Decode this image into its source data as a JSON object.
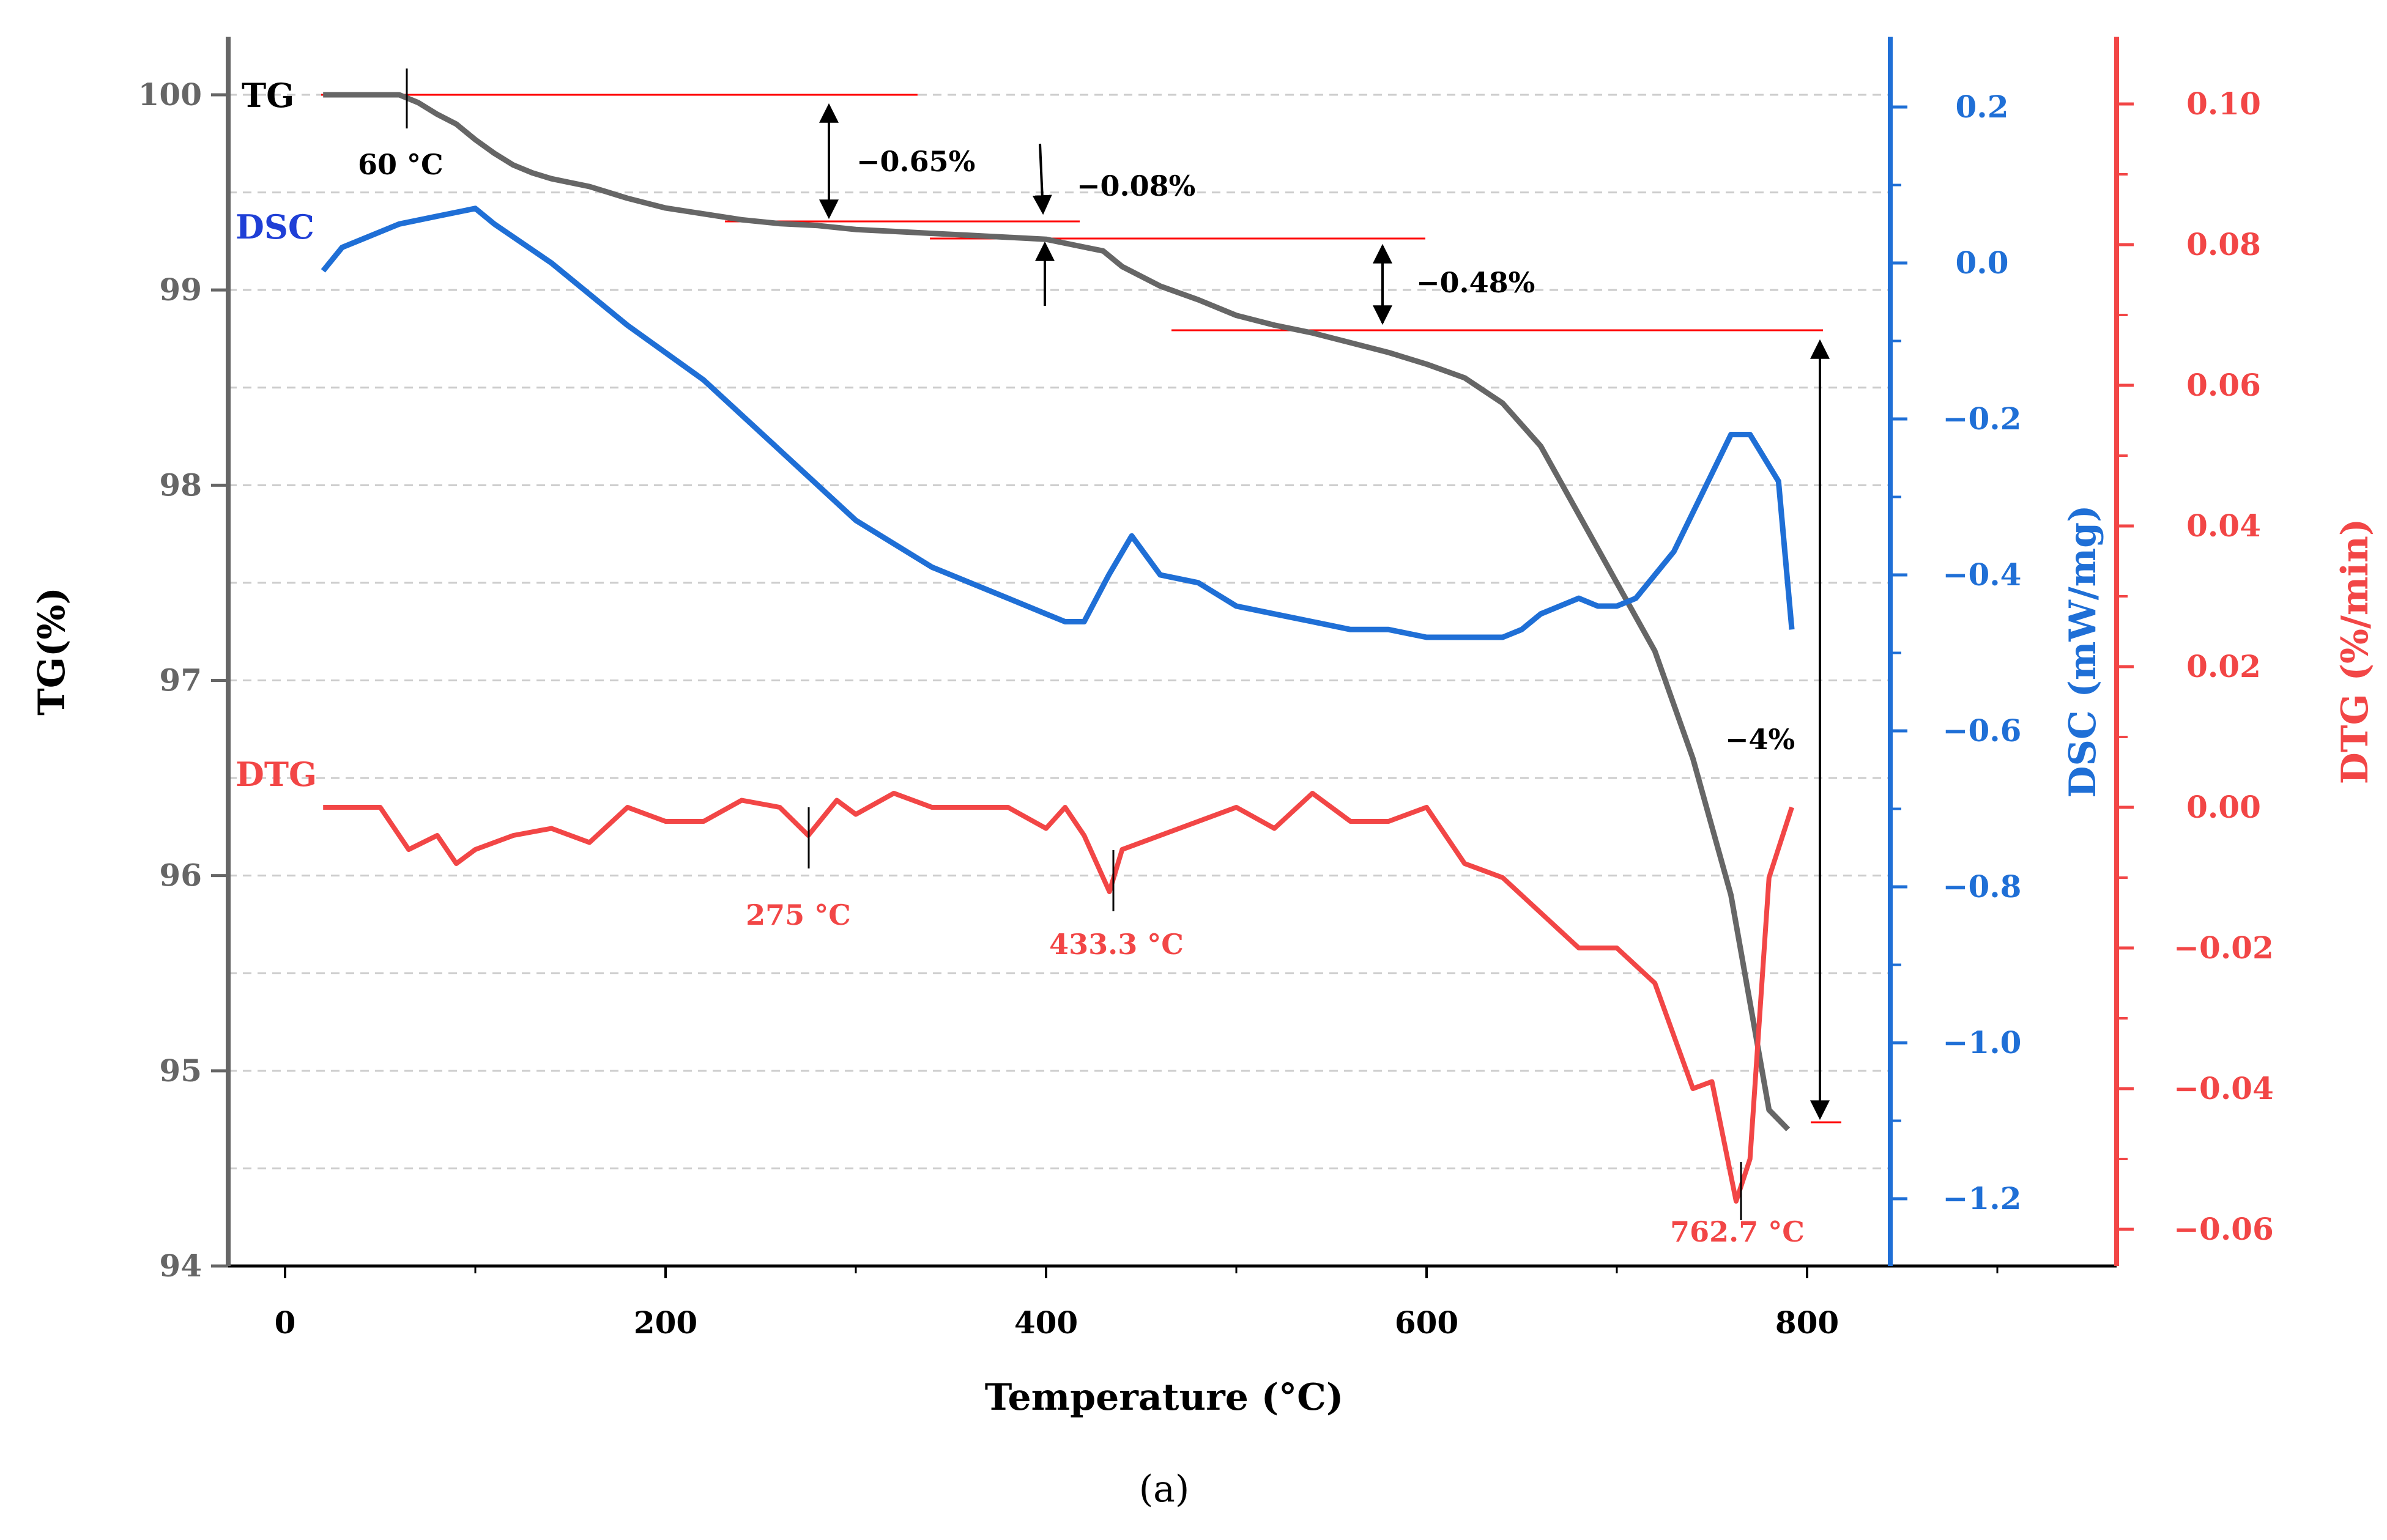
{
  "chart_data": {
    "type": "line",
    "caption": "(a)",
    "colors": {
      "tg": "#666666",
      "dsc": "#1f6fd6",
      "dtg": "#f24646",
      "axis_black": "#000000",
      "grid": "#cccccc",
      "annotation_line": "#ff0000"
    },
    "x_axis": {
      "title": "Temperature (°C)",
      "range": [
        -30,
        960
      ],
      "ticks": [
        0,
        200,
        400,
        600,
        800
      ],
      "tick_labels": [
        "0",
        "200",
        "400",
        "600",
        "800"
      ]
    },
    "tg_axis": {
      "title": "TG(%)",
      "range": [
        94,
        100.3
      ],
      "ticks": [
        94,
        95,
        96,
        97,
        98,
        99,
        100
      ],
      "tick_labels": [
        "94",
        "95",
        "96",
        "97",
        "98",
        "99",
        "100"
      ]
    },
    "dsc_axis": {
      "title": "DSC (mW/mg)",
      "ticks": [
        -1.2,
        -1.0,
        -0.8,
        -0.6,
        -0.4,
        -0.2,
        0.0,
        0.2
      ],
      "tick_labels": [
        "−1.2",
        "−1.0",
        "−0.8",
        "−0.6",
        "−0.4",
        "−0.2",
        "0.0",
        "0.2"
      ]
    },
    "dtg_axis": {
      "title": "DTG (%/min)",
      "ticks": [
        -0.06,
        -0.04,
        -0.02,
        0.0,
        0.02,
        0.04,
        0.06,
        0.08,
        0.1
      ],
      "tick_labels": [
        "−0.06",
        "−0.04",
        "−0.02",
        "0.00",
        "0.02",
        "0.04",
        "0.06",
        "0.08",
        "0.10"
      ]
    },
    "series": [
      {
        "name": "TG",
        "label": "TG",
        "axis": "tg",
        "x": [
          20,
          40,
          60,
          70,
          80,
          90,
          100,
          110,
          120,
          130,
          140,
          150,
          160,
          170,
          180,
          200,
          220,
          240,
          260,
          280,
          300,
          320,
          340,
          360,
          380,
          400,
          410,
          420,
          430,
          440,
          460,
          480,
          500,
          520,
          540,
          560,
          580,
          600,
          620,
          640,
          660,
          680,
          700,
          720,
          740,
          760,
          780,
          790
        ],
        "values": [
          100,
          100,
          100,
          99.96,
          99.9,
          99.85,
          99.77,
          99.7,
          99.64,
          99.6,
          99.57,
          99.55,
          99.53,
          99.5,
          99.47,
          99.42,
          99.39,
          99.36,
          99.34,
          99.33,
          99.31,
          99.3,
          99.29,
          99.28,
          99.27,
          99.26,
          99.24,
          99.22,
          99.2,
          99.12,
          99.02,
          98.95,
          98.87,
          98.82,
          98.78,
          98.73,
          98.68,
          98.62,
          98.55,
          98.42,
          98.2,
          97.85,
          97.5,
          97.15,
          96.6,
          95.9,
          94.8,
          94.7
        ]
      },
      {
        "name": "DSC",
        "label": "DSC",
        "axis": "dsc",
        "x": [
          20,
          30,
          40,
          60,
          80,
          100,
          110,
          140,
          180,
          220,
          260,
          300,
          340,
          380,
          400,
          410,
          420,
          433,
          445,
          460,
          480,
          500,
          520,
          540,
          560,
          580,
          600,
          620,
          640,
          650,
          660,
          680,
          690,
          700,
          710,
          720,
          730,
          740,
          750,
          760,
          770,
          775,
          785,
          792
        ],
        "values": [
          -0.01,
          0.02,
          0.03,
          0.05,
          0.06,
          0.07,
          0.05,
          0.0,
          -0.08,
          -0.15,
          -0.24,
          -0.33,
          -0.39,
          -0.43,
          -0.45,
          -0.46,
          -0.46,
          -0.4,
          -0.35,
          -0.4,
          -0.41,
          -0.44,
          -0.45,
          -0.46,
          -0.47,
          -0.47,
          -0.48,
          -0.48,
          -0.48,
          -0.47,
          -0.45,
          -0.43,
          -0.44,
          -0.44,
          -0.43,
          -0.4,
          -0.37,
          -0.32,
          -0.27,
          -0.22,
          -0.22,
          -0.24,
          -0.28,
          -0.47
        ]
      },
      {
        "name": "DTG",
        "label": "DTG",
        "axis": "dtg",
        "x": [
          20,
          50,
          65,
          80,
          90,
          100,
          120,
          140,
          160,
          180,
          200,
          220,
          240,
          260,
          275,
          290,
          300,
          320,
          340,
          360,
          380,
          400,
          410,
          420,
          433.3,
          440,
          460,
          480,
          500,
          520,
          540,
          560,
          580,
          600,
          620,
          640,
          660,
          680,
          700,
          720,
          740,
          750,
          762.7,
          770,
          780,
          792
        ],
        "values": [
          0.0,
          0.0,
          -0.006,
          -0.004,
          -0.008,
          -0.006,
          -0.004,
          -0.003,
          -0.005,
          0.0,
          -0.002,
          -0.002,
          0.001,
          0.0,
          -0.004,
          0.001,
          -0.001,
          0.002,
          0.0,
          0.0,
          0.0,
          -0.003,
          0.0,
          -0.004,
          -0.012,
          -0.006,
          -0.004,
          -0.002,
          0.0,
          -0.003,
          0.002,
          -0.002,
          -0.002,
          0.0,
          -0.008,
          -0.01,
          -0.015,
          -0.02,
          -0.02,
          -0.025,
          -0.04,
          -0.039,
          -0.056,
          -0.05,
          -0.01,
          0.0
        ]
      }
    ],
    "annotations": [
      {
        "text": "60 °C",
        "color": "black"
      },
      {
        "text": "−0.65%",
        "color": "black"
      },
      {
        "text": "−0.08%",
        "color": "black"
      },
      {
        "text": "−0.48%",
        "color": "black"
      },
      {
        "text": "−4%",
        "color": "black"
      },
      {
        "text": "275 °C",
        "color": "red"
      },
      {
        "text": "433.3 °C",
        "color": "red"
      },
      {
        "text": "762.7 °C",
        "color": "red"
      }
    ]
  }
}
